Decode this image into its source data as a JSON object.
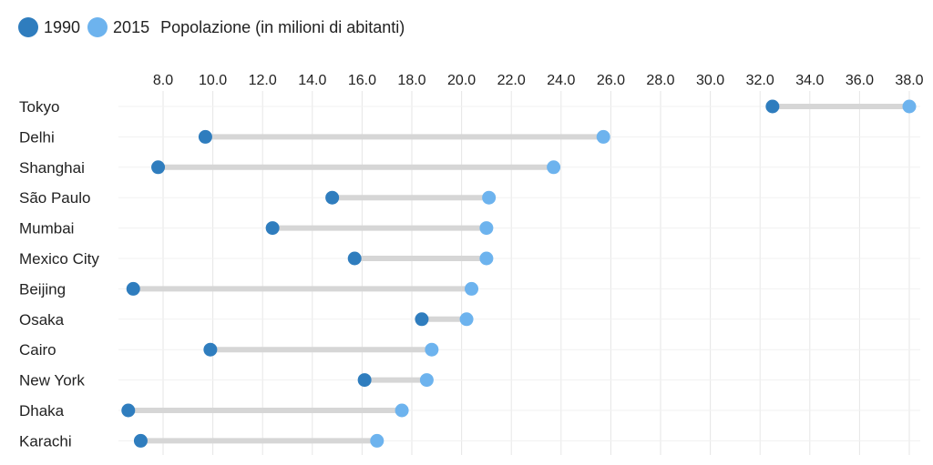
{
  "legend": {
    "series1_label": "1990",
    "series2_label": "2015",
    "title": "Popolazione (in milioni di abitanti)"
  },
  "colors": {
    "series1": "#2f7dbe",
    "series2": "#6db3ee",
    "connector": "#d6d6d6",
    "grid": "#e6e6e6"
  },
  "chart_data": {
    "type": "dumbbell",
    "title": "Popolazione (in milioni di abitanti)",
    "xlim": [
      6.5,
      38.2
    ],
    "x_ticks": [
      8.0,
      10.0,
      12.0,
      14.0,
      16.0,
      18.0,
      20.0,
      22.0,
      24.0,
      26.0,
      28.0,
      30.0,
      32.0,
      34.0,
      36.0,
      38.0
    ],
    "x_tick_labels": [
      "8.0",
      "10.0",
      "12.0",
      "14.0",
      "16.0",
      "18.0",
      "20.0",
      "22.0",
      "24.0",
      "26.0",
      "28.0",
      "30.0",
      "32.0",
      "34.0",
      "36.0",
      "38.0"
    ],
    "grid": true,
    "legend_position": "top-left",
    "categories": [
      "Tokyo",
      "Delhi",
      "Shanghai",
      "São Paulo",
      "Mumbai",
      "Mexico City",
      "Beijing",
      "Osaka",
      "Cairo",
      "New York",
      "Dhaka",
      "Karachi"
    ],
    "series": [
      {
        "name": "1990",
        "values": [
          32.5,
          9.7,
          7.8,
          14.8,
          12.4,
          15.7,
          6.8,
          18.4,
          9.9,
          16.1,
          6.6,
          7.1
        ]
      },
      {
        "name": "2015",
        "values": [
          38.0,
          25.7,
          23.7,
          21.1,
          21.0,
          21.0,
          20.4,
          20.2,
          18.8,
          18.6,
          17.6,
          16.6
        ]
      }
    ]
  }
}
